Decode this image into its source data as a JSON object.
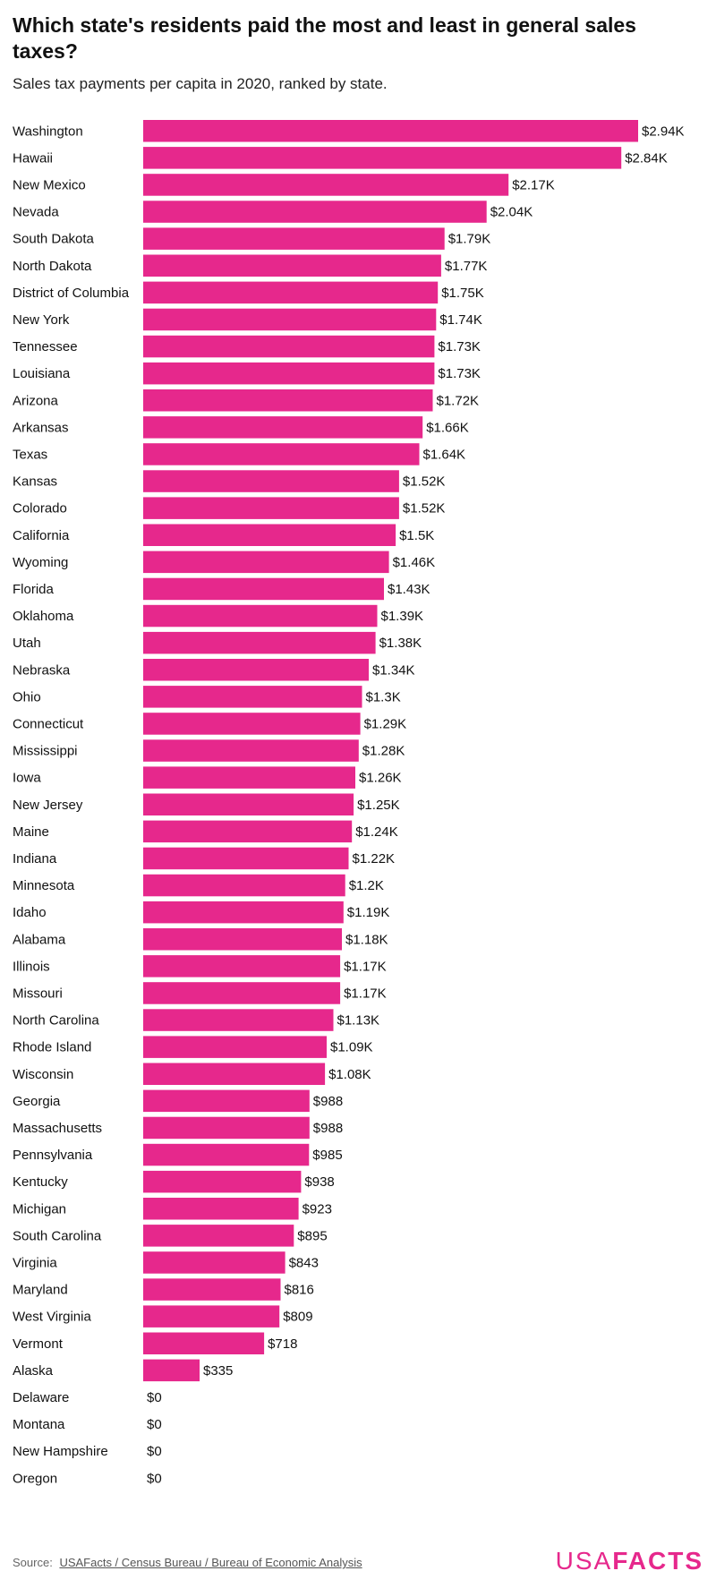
{
  "title": "Which state's residents paid the most and least in general sales taxes?",
  "subtitle": "Sales tax payments per capita in 2020, ranked by state.",
  "source_label": "Source:",
  "source_link": "USAFacts / Census Bureau / Bureau of Economic Analysis",
  "logo": {
    "part1": "USA",
    "part2": "FACTS"
  },
  "colors": {
    "bar": "#e6288c"
  },
  "chart_data": {
    "type": "bar",
    "orientation": "horizontal",
    "categories": [
      "Washington",
      "Hawaii",
      "New Mexico",
      "Nevada",
      "South Dakota",
      "North Dakota",
      "District of Columbia",
      "New York",
      "Tennessee",
      "Louisiana",
      "Arizona",
      "Arkansas",
      "Texas",
      "Kansas",
      "Colorado",
      "California",
      "Wyoming",
      "Florida",
      "Oklahoma",
      "Utah",
      "Nebraska",
      "Ohio",
      "Connecticut",
      "Mississippi",
      "Iowa",
      "New Jersey",
      "Maine",
      "Indiana",
      "Minnesota",
      "Idaho",
      "Alabama",
      "Illinois",
      "Missouri",
      "North Carolina",
      "Rhode Island",
      "Wisconsin",
      "Georgia",
      "Massachusetts",
      "Pennsylvania",
      "Kentucky",
      "Michigan",
      "South Carolina",
      "Virginia",
      "Maryland",
      "West Virginia",
      "Vermont",
      "Alaska",
      "Delaware",
      "Montana",
      "New Hampshire",
      "Oregon"
    ],
    "values": [
      2940,
      2840,
      2170,
      2040,
      1790,
      1770,
      1750,
      1740,
      1730,
      1730,
      1720,
      1660,
      1640,
      1520,
      1520,
      1500,
      1460,
      1430,
      1390,
      1380,
      1340,
      1300,
      1290,
      1280,
      1260,
      1250,
      1240,
      1220,
      1200,
      1190,
      1180,
      1170,
      1170,
      1130,
      1090,
      1080,
      988,
      988,
      985,
      938,
      923,
      895,
      843,
      816,
      809,
      718,
      335,
      0,
      0,
      0,
      0
    ],
    "labels": [
      "$2.94K",
      "$2.84K",
      "$2.17K",
      "$2.04K",
      "$1.79K",
      "$1.77K",
      "$1.75K",
      "$1.74K",
      "$1.73K",
      "$1.73K",
      "$1.72K",
      "$1.66K",
      "$1.64K",
      "$1.52K",
      "$1.52K",
      "$1.5K",
      "$1.46K",
      "$1.43K",
      "$1.39K",
      "$1.38K",
      "$1.34K",
      "$1.3K",
      "$1.29K",
      "$1.28K",
      "$1.26K",
      "$1.25K",
      "$1.24K",
      "$1.22K",
      "$1.2K",
      "$1.19K",
      "$1.18K",
      "$1.17K",
      "$1.17K",
      "$1.13K",
      "$1.09K",
      "$1.08K",
      "$988",
      "$988",
      "$985",
      "$938",
      "$923",
      "$895",
      "$843",
      "$816",
      "$809",
      "$718",
      "$335",
      "$0",
      "$0",
      "$0",
      "$0"
    ],
    "xlim": [
      0,
      2940
    ],
    "grid": false,
    "legend": "none"
  }
}
